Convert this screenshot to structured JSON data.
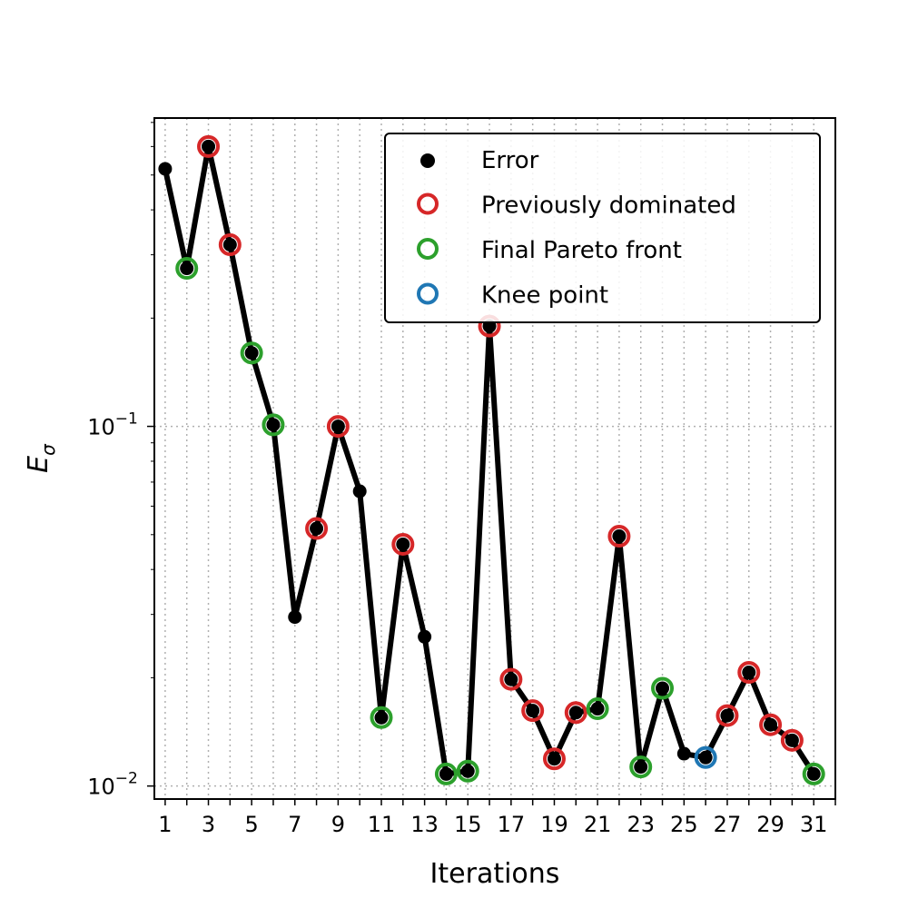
{
  "chart_data": {
    "type": "line",
    "xlabel": "Iterations",
    "ylabel_base": "E",
    "ylabel_sub": "σ",
    "yscale": "log",
    "xlim": [
      0.5,
      32
    ],
    "ylim": [
      0.0092,
      0.72
    ],
    "xticks": [
      1,
      3,
      5,
      7,
      9,
      11,
      13,
      15,
      17,
      19,
      21,
      23,
      25,
      27,
      29,
      31
    ],
    "yticks_major": [
      {
        "value": 0.01,
        "base": "10",
        "exp": "−2"
      },
      {
        "value": 0.1,
        "base": "10",
        "exp": "−1"
      }
    ],
    "grid": true,
    "legend_position": "top-right",
    "colors": {
      "line": "#000000",
      "error": "#000000",
      "previously_dominated": "#d62728",
      "final_pareto_front": "#2ca02c",
      "knee_point": "#1f77b4"
    },
    "legend": [
      {
        "label": "Error",
        "kind": "error"
      },
      {
        "label": "Previously dominated",
        "kind": "previously_dominated"
      },
      {
        "label": "Final Pareto front",
        "kind": "final_pareto_front"
      },
      {
        "label": "Knee point",
        "kind": "knee_point"
      }
    ],
    "points": [
      {
        "x": 1,
        "y": 0.52,
        "kind": "error"
      },
      {
        "x": 2,
        "y": 0.275,
        "kind": "final_pareto_front"
      },
      {
        "x": 3,
        "y": 0.6,
        "kind": "previously_dominated"
      },
      {
        "x": 4,
        "y": 0.32,
        "kind": "previously_dominated"
      },
      {
        "x": 5,
        "y": 0.16,
        "kind": "final_pareto_front"
      },
      {
        "x": 6,
        "y": 0.101,
        "kind": "final_pareto_front"
      },
      {
        "x": 7,
        "y": 0.0295,
        "kind": "error"
      },
      {
        "x": 8,
        "y": 0.052,
        "kind": "previously_dominated"
      },
      {
        "x": 9,
        "y": 0.1,
        "kind": "previously_dominated"
      },
      {
        "x": 10,
        "y": 0.066,
        "kind": "error"
      },
      {
        "x": 11,
        "y": 0.0155,
        "kind": "final_pareto_front"
      },
      {
        "x": 12,
        "y": 0.047,
        "kind": "previously_dominated"
      },
      {
        "x": 13,
        "y": 0.026,
        "kind": "error"
      },
      {
        "x": 14,
        "y": 0.0108,
        "kind": "final_pareto_front"
      },
      {
        "x": 15,
        "y": 0.011,
        "kind": "final_pareto_front"
      },
      {
        "x": 16,
        "y": 0.19,
        "kind": "previously_dominated"
      },
      {
        "x": 17,
        "y": 0.0198,
        "kind": "previously_dominated"
      },
      {
        "x": 18,
        "y": 0.0162,
        "kind": "previously_dominated"
      },
      {
        "x": 19,
        "y": 0.0119,
        "kind": "previously_dominated"
      },
      {
        "x": 20,
        "y": 0.016,
        "kind": "previously_dominated"
      },
      {
        "x": 21,
        "y": 0.0164,
        "kind": "final_pareto_front"
      },
      {
        "x": 22,
        "y": 0.0495,
        "kind": "previously_dominated"
      },
      {
        "x": 23,
        "y": 0.0113,
        "kind": "final_pareto_front"
      },
      {
        "x": 24,
        "y": 0.0187,
        "kind": "final_pareto_front"
      },
      {
        "x": 25,
        "y": 0.0123,
        "kind": "error"
      },
      {
        "x": 26,
        "y": 0.012,
        "kind": "knee_point"
      },
      {
        "x": 27,
        "y": 0.0157,
        "kind": "previously_dominated"
      },
      {
        "x": 28,
        "y": 0.0207,
        "kind": "previously_dominated"
      },
      {
        "x": 29,
        "y": 0.0148,
        "kind": "previously_dominated"
      },
      {
        "x": 30,
        "y": 0.0134,
        "kind": "previously_dominated"
      },
      {
        "x": 31,
        "y": 0.0108,
        "kind": "final_pareto_front"
      }
    ]
  }
}
